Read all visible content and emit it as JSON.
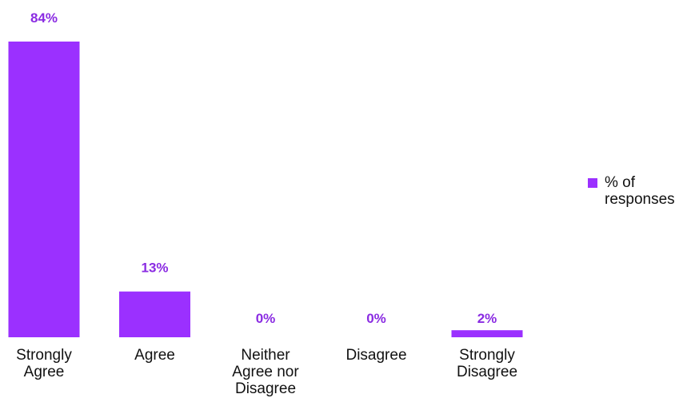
{
  "chart_data": {
    "type": "bar",
    "categories": [
      "Strongly Agree",
      "Agree",
      "Neither Agree nor Disagree",
      "Disagree",
      "Strongly Disagree"
    ],
    "series": [
      {
        "name": "% of responses",
        "values": [
          84,
          13,
          0,
          0,
          2
        ]
      }
    ],
    "data_labels": [
      "84%",
      "13%",
      "0%",
      "0%",
      "2%"
    ],
    "ylim": [
      0,
      84
    ],
    "grid": false,
    "legend": "right",
    "colors": {
      "bar": "#9b30ff",
      "data_label": "#8a2be2",
      "text": "#111111"
    }
  }
}
